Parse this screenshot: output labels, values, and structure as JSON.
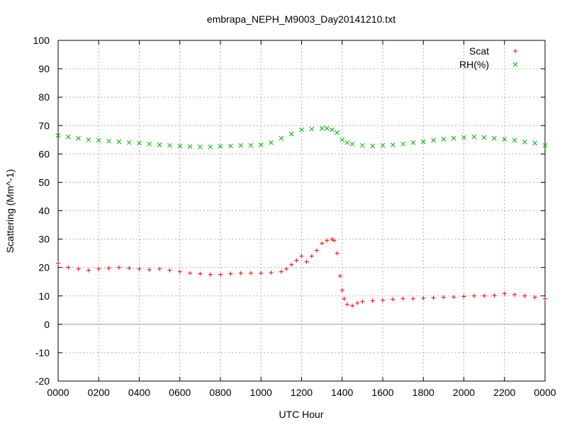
{
  "chart_data": {
    "type": "scatter",
    "title": "embrapa_NEPH_M9003_Day20141210.txt",
    "xlabel": "UTC Hour",
    "ylabel": "Scattering (Mm^-1)",
    "xlim": [
      0,
      24
    ],
    "ylim": [
      -20,
      100
    ],
    "x_ticks": [
      0,
      2,
      4,
      6,
      8,
      10,
      12,
      14,
      16,
      18,
      20,
      22,
      24
    ],
    "x_tick_labels": [
      "0000",
      "0200",
      "0400",
      "0600",
      "0800",
      "1000",
      "1200",
      "1400",
      "1600",
      "1800",
      "2000",
      "2200",
      "0000"
    ],
    "y_ticks": [
      -20,
      -10,
      0,
      10,
      20,
      30,
      40,
      50,
      60,
      70,
      80,
      90,
      100
    ],
    "y_tick_labels": [
      "-20",
      "-10",
      "0",
      "10",
      "20",
      "30",
      "40",
      "50",
      "60",
      "70",
      "80",
      "90",
      "100"
    ],
    "grid": true,
    "zero_line": true,
    "legend_position": "top-right",
    "series": [
      {
        "name": "Scat",
        "marker": "plus",
        "color": "#ff0000",
        "x": [
          0.0,
          0.5,
          1.0,
          1.5,
          2.0,
          2.5,
          3.0,
          3.5,
          4.0,
          4.5,
          5.0,
          5.5,
          6.0,
          6.5,
          7.0,
          7.5,
          8.0,
          8.5,
          9.0,
          9.5,
          10.0,
          10.5,
          11.0,
          11.25,
          11.5,
          11.75,
          12.0,
          12.25,
          12.5,
          12.75,
          13.0,
          13.25,
          13.5,
          13.6,
          13.75,
          13.9,
          14.0,
          14.1,
          14.25,
          14.5,
          14.75,
          15.0,
          15.5,
          16.0,
          16.5,
          17.0,
          17.5,
          18.0,
          18.5,
          19.0,
          19.5,
          20.0,
          20.5,
          21.0,
          21.5,
          22.0,
          22.5,
          23.0,
          23.5,
          24.0
        ],
        "y": [
          21.5,
          20.0,
          19.5,
          19.0,
          19.5,
          19.8,
          20.0,
          19.8,
          19.5,
          19.2,
          19.5,
          19.0,
          18.5,
          18.0,
          17.8,
          17.5,
          17.5,
          17.8,
          18.0,
          18.0,
          18.0,
          18.2,
          18.5,
          19.5,
          21.0,
          22.5,
          24.0,
          22.0,
          24.0,
          26.0,
          28.5,
          29.5,
          30.0,
          29.5,
          25.0,
          17.0,
          12.0,
          9.0,
          7.0,
          6.5,
          7.5,
          8.0,
          8.3,
          8.5,
          8.8,
          9.0,
          9.0,
          9.2,
          9.3,
          9.5,
          9.6,
          9.8,
          10.0,
          10.0,
          10.2,
          10.8,
          10.5,
          10.0,
          9.5,
          9.0
        ]
      },
      {
        "name": "RH(%)",
        "marker": "cross",
        "color": "#00b000",
        "x": [
          0.0,
          0.5,
          1.0,
          1.5,
          2.0,
          2.5,
          3.0,
          3.5,
          4.0,
          4.5,
          5.0,
          5.5,
          6.0,
          6.5,
          7.0,
          7.5,
          8.0,
          8.5,
          9.0,
          9.5,
          10.0,
          10.5,
          11.0,
          11.5,
          12.0,
          12.5,
          13.0,
          13.25,
          13.5,
          13.75,
          14.0,
          14.25,
          14.5,
          15.0,
          15.5,
          16.0,
          16.5,
          17.0,
          17.5,
          18.0,
          18.5,
          19.0,
          19.5,
          20.0,
          20.5,
          21.0,
          21.5,
          22.0,
          22.5,
          23.0,
          23.5,
          24.0
        ],
        "y": [
          66.5,
          66.0,
          65.5,
          65.0,
          64.8,
          64.5,
          64.3,
          64.0,
          63.8,
          63.5,
          63.2,
          63.0,
          62.8,
          62.6,
          62.5,
          62.5,
          62.7,
          62.8,
          63.0,
          63.0,
          63.2,
          64.0,
          65.5,
          67.0,
          68.5,
          68.8,
          69.0,
          69.0,
          68.5,
          67.5,
          65.0,
          64.0,
          63.5,
          63.0,
          62.8,
          63.0,
          63.2,
          63.5,
          64.0,
          64.3,
          64.8,
          65.2,
          65.5,
          65.8,
          66.0,
          65.8,
          65.5,
          65.2,
          64.8,
          64.2,
          63.8,
          63.0
        ]
      }
    ]
  }
}
